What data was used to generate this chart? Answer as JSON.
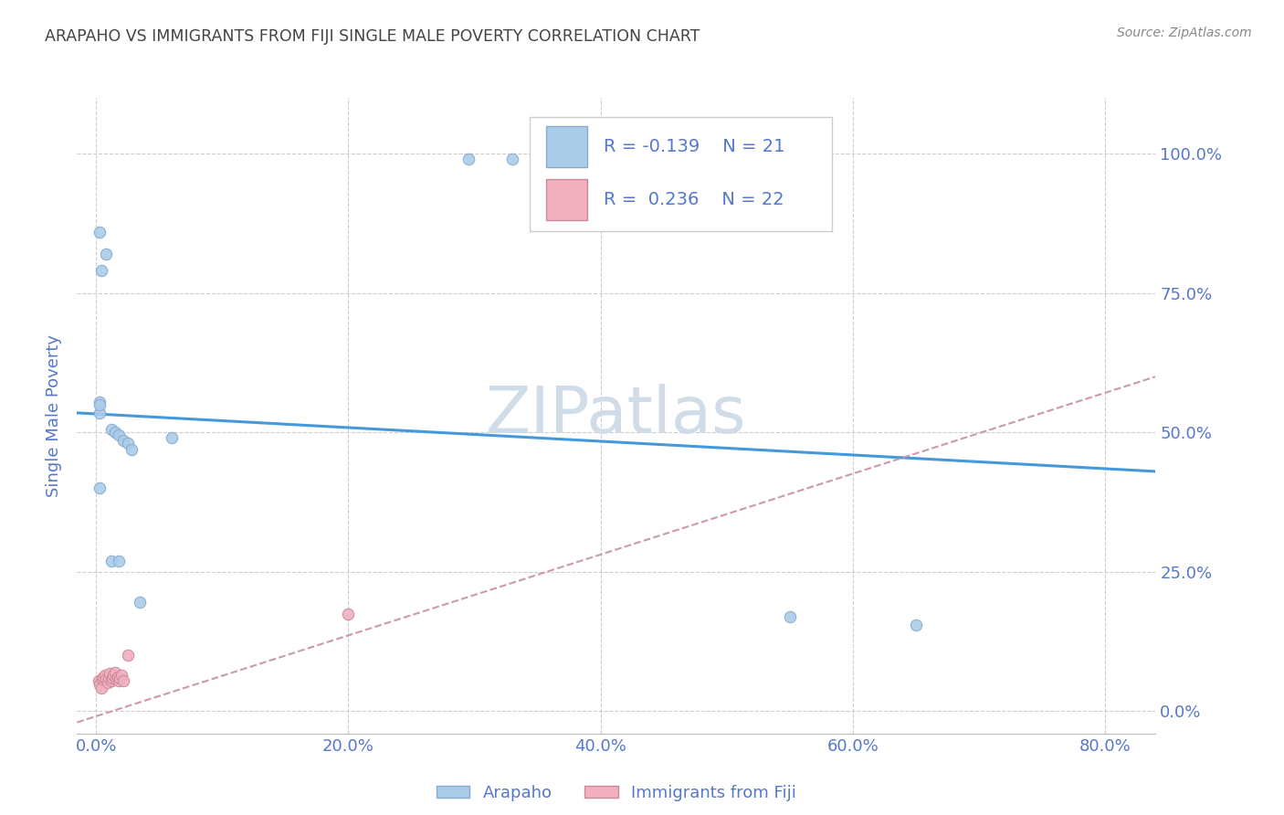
{
  "title": "ARAPAHO VS IMMIGRANTS FROM FIJI SINGLE MALE POVERTY CORRELATION CHART",
  "source": "Source: ZipAtlas.com",
  "xlabel_ticks": [
    "0.0%",
    "20.0%",
    "40.0%",
    "60.0%",
    "80.0%"
  ],
  "ylabel_right_ticks": [
    "0.0%",
    "25.0%",
    "50.0%",
    "75.0%",
    "100.0%"
  ],
  "xlabel_tick_vals": [
    0.0,
    0.2,
    0.4,
    0.6,
    0.8
  ],
  "ylabel_tick_vals": [
    0.0,
    0.25,
    0.5,
    0.75,
    1.0
  ],
  "xlim": [
    -0.015,
    0.84
  ],
  "ylim": [
    -0.04,
    1.1
  ],
  "arapaho_x": [
    0.003,
    0.008,
    0.004,
    0.003,
    0.012,
    0.015,
    0.018,
    0.022,
    0.025,
    0.028,
    0.06,
    0.003,
    0.012,
    0.018,
    0.035,
    0.003,
    0.003,
    0.55,
    0.65,
    0.295,
    0.33
  ],
  "arapaho_y": [
    0.86,
    0.82,
    0.79,
    0.535,
    0.505,
    0.5,
    0.495,
    0.485,
    0.48,
    0.47,
    0.49,
    0.4,
    0.27,
    0.27,
    0.195,
    0.555,
    0.55,
    0.17,
    0.155,
    0.99,
    0.99
  ],
  "fiji_x": [
    0.002,
    0.003,
    0.004,
    0.005,
    0.006,
    0.007,
    0.008,
    0.009,
    0.01,
    0.011,
    0.012,
    0.013,
    0.014,
    0.015,
    0.016,
    0.017,
    0.018,
    0.019,
    0.02,
    0.022,
    0.025,
    0.2
  ],
  "fiji_y": [
    0.055,
    0.048,
    0.042,
    0.058,
    0.062,
    0.065,
    0.058,
    0.052,
    0.06,
    0.068,
    0.055,
    0.06,
    0.065,
    0.07,
    0.058,
    0.062,
    0.055,
    0.06,
    0.065,
    0.055,
    0.1,
    0.175
  ],
  "arapaho_color": "#aacce8",
  "arapaho_edge_color": "#88aacc",
  "fiji_color": "#f0b0c0",
  "fiji_edge_color": "#cc8898",
  "arapaho_R": -0.139,
  "arapaho_N": 21,
  "fiji_R": 0.236,
  "fiji_N": 22,
  "trend_blue_color": "#4499dd",
  "trend_pink_color": "#cc99aa",
  "text_color": "#5577cc",
  "title_color": "#444444",
  "grid_color": "#cccccc",
  "marker_size": 80,
  "ylabel": "Single Male Poverty",
  "watermark": "ZIPatlas",
  "watermark_color": "#d0dce8"
}
